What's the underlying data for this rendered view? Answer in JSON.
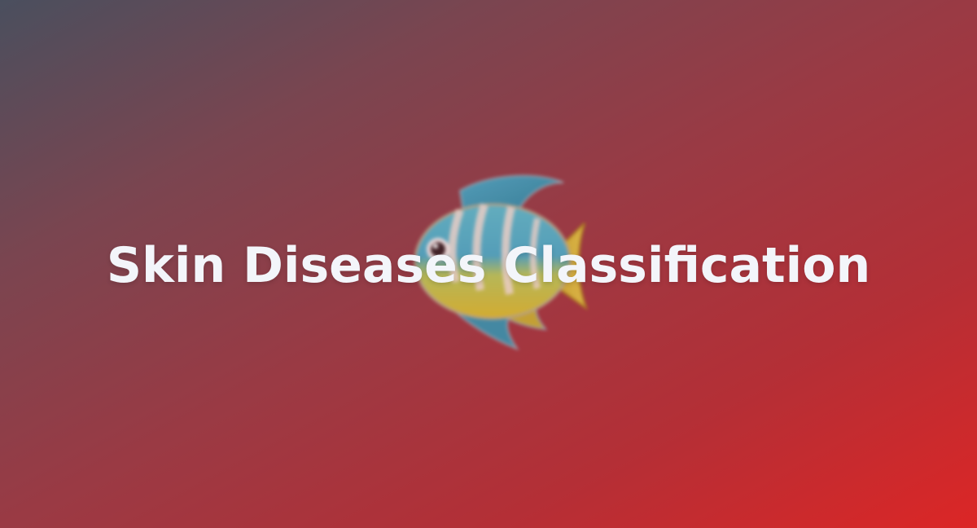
{
  "card": {
    "title": "Skin Diseases Classification",
    "emoji_icon": "tropical-fish-icon",
    "colors": {
      "gradient_start": "#4a4f5e",
      "gradient_end": "#dc2626",
      "title_text": "#f3f5fa"
    }
  }
}
